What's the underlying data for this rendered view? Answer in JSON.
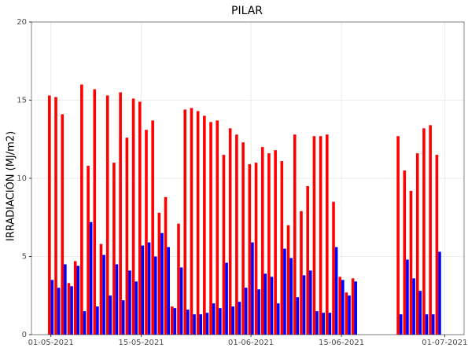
{
  "chart_data": {
    "type": "bar",
    "title": "PILAR",
    "y_label": "IRRADIACIÓN (MJ/m2)",
    "x": [
      "2021-05-01",
      "2021-05-02",
      "2021-05-03",
      "2021-05-04",
      "2021-05-05",
      "2021-05-06",
      "2021-05-07",
      "2021-05-08",
      "2021-05-09",
      "2021-05-10",
      "2021-05-11",
      "2021-05-12",
      "2021-05-13",
      "2021-05-14",
      "2021-05-15",
      "2021-05-16",
      "2021-05-17",
      "2021-05-18",
      "2021-05-19",
      "2021-05-20",
      "2021-05-21",
      "2021-05-22",
      "2021-05-23",
      "2021-05-24",
      "2021-05-25",
      "2021-05-26",
      "2021-05-27",
      "2021-05-28",
      "2021-05-29",
      "2021-05-30",
      "2021-05-31",
      "2021-06-01",
      "2021-06-02",
      "2021-06-03",
      "2021-06-04",
      "2021-06-05",
      "2021-06-06",
      "2021-06-07",
      "2021-06-08",
      "2021-06-09",
      "2021-06-10",
      "2021-06-11",
      "2021-06-12",
      "2021-06-13",
      "2021-06-14",
      "2021-06-15",
      "2021-06-16",
      "2021-06-17",
      "2021-06-24",
      "2021-06-25",
      "2021-06-26",
      "2021-06-27",
      "2021-06-28",
      "2021-06-29",
      "2021-06-30"
    ],
    "series": [
      {
        "color": "#ff0000",
        "values": [
          15.3,
          15.2,
          14.1,
          3.3,
          4.7,
          16.0,
          10.8,
          15.7,
          5.8,
          15.3,
          11.0,
          15.5,
          12.6,
          15.1,
          14.9,
          13.1,
          13.7,
          7.8,
          8.8,
          1.8,
          7.1,
          14.4,
          14.5,
          14.3,
          14.0,
          13.6,
          13.7,
          11.5,
          13.2,
          12.8,
          12.3,
          10.9,
          11.0,
          12.0,
          11.6,
          11.8,
          11.1,
          7.0,
          12.8,
          7.9,
          9.5,
          12.7,
          12.7,
          12.8,
          8.5,
          3.7,
          2.7,
          3.6,
          12.7,
          10.5,
          9.2,
          11.6,
          13.2,
          13.4,
          11.5
        ]
      },
      {
        "color": "#0000ff",
        "values": [
          3.5,
          3.0,
          4.5,
          3.1,
          4.4,
          1.5,
          7.2,
          1.8,
          5.1,
          2.5,
          4.5,
          2.2,
          4.1,
          3.4,
          5.7,
          5.9,
          5.0,
          6.5,
          5.6,
          1.7,
          4.3,
          1.6,
          1.3,
          1.3,
          1.4,
          2.0,
          1.7,
          4.6,
          1.8,
          2.1,
          3.0,
          5.9,
          2.9,
          3.9,
          3.7,
          2.0,
          5.5,
          4.9,
          2.4,
          3.8,
          4.1,
          1.5,
          1.4,
          1.4,
          5.6,
          3.5,
          2.5,
          3.4,
          1.3,
          4.8,
          3.6,
          2.8,
          1.3,
          1.3,
          5.3
        ]
      }
    ],
    "xlim": [
      "2021-04-28",
      "2021-07-04"
    ],
    "xticks": [
      {
        "value": "2021-05-01",
        "label": "01-05-2021"
      },
      {
        "value": "2021-05-15",
        "label": "15-05-2021"
      },
      {
        "value": "2021-06-01",
        "label": "01-06-2021"
      },
      {
        "value": "2021-06-15",
        "label": "15-06-2021"
      },
      {
        "value": "2021-07-01",
        "label": "01-07-2021"
      }
    ],
    "ylim": [
      0,
      20
    ],
    "yticks": [
      0,
      5,
      10,
      15,
      20
    ],
    "grid": true
  }
}
